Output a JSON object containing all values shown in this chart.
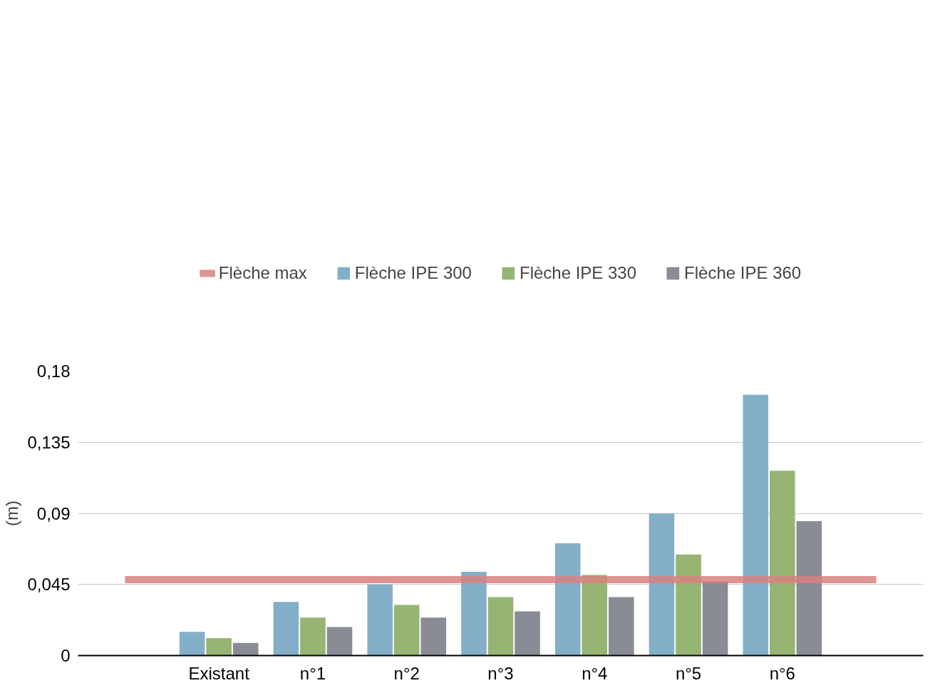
{
  "chart_data": {
    "type": "bar",
    "ylabel": "(m)",
    "categories": [
      null,
      "Existant",
      "n°1",
      "n°2",
      "n°3",
      "n°4",
      "n°5",
      "n°6",
      null
    ],
    "series": [
      {
        "name": "Flèche max",
        "type": "line",
        "color": "#d98080",
        "values": [
          0.048,
          0.048,
          0.048,
          0.048,
          0.048,
          0.048,
          0.048,
          0.048,
          0.048
        ]
      },
      {
        "name": "Flèche IPE 300",
        "color": "#84afc8",
        "values": [
          null,
          0.015,
          0.034,
          0.045,
          0.053,
          0.071,
          0.09,
          0.165,
          null
        ]
      },
      {
        "name": "Flèche IPE 330",
        "color": "#96b472",
        "values": [
          null,
          0.011,
          0.024,
          0.032,
          0.037,
          0.051,
          0.064,
          0.117,
          null
        ]
      },
      {
        "name": "Flèche IPE 360",
        "color": "#898c94",
        "values": [
          null,
          0.008,
          0.018,
          0.024,
          0.028,
          0.037,
          0.047,
          0.085,
          null
        ]
      }
    ],
    "ylim": [
      0,
      0.18
    ],
    "yticks": [
      0,
      {
        "value": 0.045,
        "label": "0,045"
      },
      {
        "value": 0.09,
        "label": "0,09"
      },
      {
        "value": 0.135,
        "label": "0,135"
      },
      {
        "value": 0.18,
        "label": "0,18"
      }
    ],
    "grid": "y",
    "legend": "top"
  }
}
